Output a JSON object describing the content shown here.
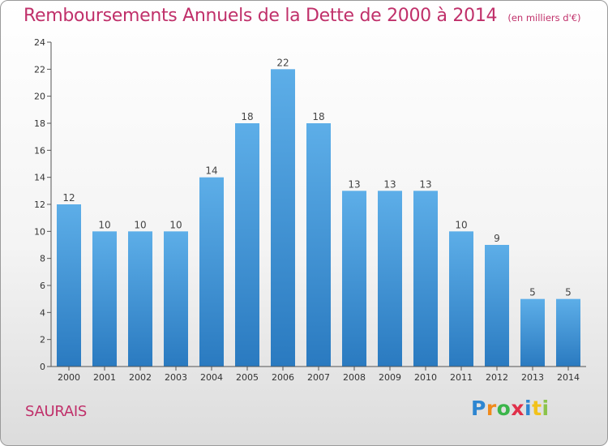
{
  "title": "Remboursements Annuels de la Dette de 2000 à 2014",
  "subtitle": "(en milliers d'€)",
  "commune": "SAURAIS",
  "logo": {
    "letters": [
      "P",
      "r",
      "o",
      "x",
      "i",
      "t",
      "i"
    ],
    "colors": [
      "#2e86d1",
      "#f08a1c",
      "#3bb54a",
      "#e0304a",
      "#2e86d1",
      "#f2c21a",
      "#8bc34a"
    ]
  },
  "colors": {
    "title": "#c0306a",
    "bar_light": "#5daee8",
    "bar_dark": "#2a7ac0",
    "axis": "#555555"
  },
  "chart_data": {
    "type": "bar",
    "categories": [
      "2000",
      "2001",
      "2002",
      "2003",
      "2004",
      "2005",
      "2006",
      "2007",
      "2008",
      "2009",
      "2010",
      "2011",
      "2012",
      "2013",
      "2014"
    ],
    "values": [
      12,
      10,
      10,
      10,
      14,
      18,
      22,
      18,
      13,
      13,
      13,
      10,
      9,
      5,
      5
    ],
    "ylim": [
      0,
      24
    ],
    "yticks": [
      0,
      2,
      4,
      6,
      8,
      10,
      12,
      14,
      16,
      18,
      20,
      22,
      24
    ],
    "grid": false,
    "data_labels": true
  }
}
